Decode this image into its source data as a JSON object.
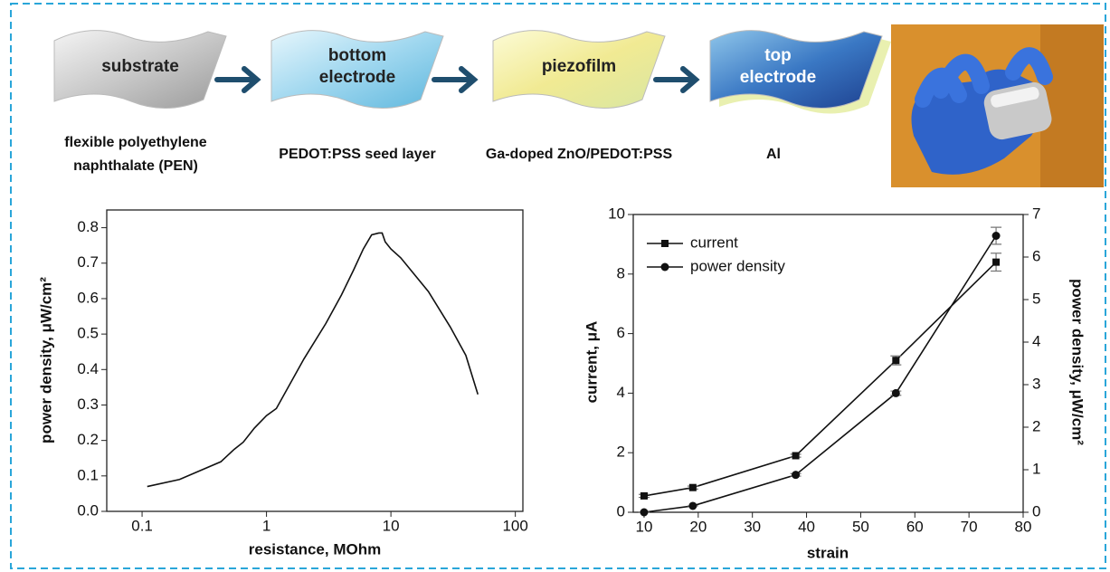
{
  "diagram": {
    "steps": [
      {
        "label": "substrate",
        "caption": [
          "flexible polyethylene",
          "naphthalate (PEN)"
        ]
      },
      {
        "label": [
          "bottom",
          "electrode"
        ],
        "caption": [
          "PEDOT:PSS seed layer"
        ]
      },
      {
        "label": "piezofilm",
        "caption": [
          "Ga-doped ZnO/PEDOT:PSS"
        ]
      },
      {
        "label": [
          "top",
          "electrode"
        ],
        "caption": [
          "Al"
        ]
      }
    ]
  },
  "chart_data": [
    {
      "type": "line",
      "x_label": "resistance, MOhm",
      "y_label": "power density, μW/cm²",
      "x": [
        0.11,
        0.2,
        0.43,
        0.55,
        0.65,
        0.8,
        1.0,
        1.2,
        2,
        3,
        4,
        5,
        6,
        7,
        8,
        8.5,
        9,
        10,
        12,
        20,
        30,
        40,
        50
      ],
      "values": [
        0.07,
        0.09,
        0.14,
        0.175,
        0.195,
        0.235,
        0.27,
        0.29,
        0.43,
        0.53,
        0.61,
        0.68,
        0.74,
        0.78,
        0.785,
        0.785,
        0.76,
        0.74,
        0.715,
        0.62,
        0.52,
        0.44,
        0.33
      ],
      "color": "#111111",
      "x_scale": "log",
      "xlim": [
        0.052,
        115
      ],
      "xticks": [
        0.1,
        1,
        10,
        100
      ],
      "ylim": [
        0,
        0.85
      ],
      "yticks": [
        {
          "value": 0,
          "label": "0.0"
        },
        0.1,
        0.2,
        0.3,
        0.4,
        0.5,
        0.6,
        0.7,
        0.8
      ]
    },
    {
      "type": "line",
      "x_label": "strain",
      "y_label": "current, μA",
      "y2_label": "power density, μW/cm²",
      "x": [
        10,
        19,
        38,
        56.5,
        75
      ],
      "series": [
        {
          "name": "current",
          "color": "#111111",
          "marker": "square",
          "values": [
            0.55,
            0.83,
            1.9,
            5.1,
            8.4
          ],
          "errors": [
            0.05,
            0.05,
            0.05,
            0.15,
            0.3
          ]
        },
        {
          "name": "power density",
          "color": "#111111",
          "marker": "circle",
          "axis": "y2",
          "values": [
            0.0,
            0.15,
            0.88,
            2.8,
            6.5
          ],
          "errors": [
            0.0,
            0.0,
            0.03,
            0.05,
            0.2
          ]
        }
      ],
      "legend": "upper left",
      "xlim": [
        8,
        80
      ],
      "xticks": [
        10,
        20,
        30,
        40,
        50,
        60,
        70,
        80
      ],
      "ylim": [
        0,
        10
      ],
      "yticks": [
        0,
        2,
        4,
        6,
        8,
        10
      ],
      "y2lim": [
        0,
        7
      ],
      "y2ticks": [
        0,
        1,
        2,
        3,
        4,
        5,
        6,
        7
      ]
    }
  ]
}
